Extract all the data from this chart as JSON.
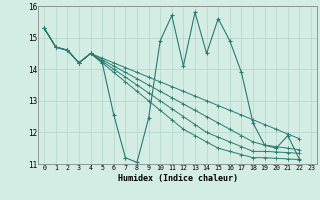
{
  "xlabel": "Humidex (Indice chaleur)",
  "ylabel": "",
  "bg_color": "#d4ede4",
  "line_color": "#2a7a6e",
  "grid_color": "#b8d8ce",
  "xlim": [
    -0.5,
    23.5
  ],
  "ylim": [
    11,
    16
  ],
  "yticks": [
    11,
    12,
    13,
    14,
    15,
    16
  ],
  "xticks": [
    0,
    1,
    2,
    3,
    4,
    5,
    6,
    7,
    8,
    9,
    10,
    11,
    12,
    13,
    14,
    15,
    16,
    17,
    18,
    19,
    20,
    21,
    22,
    23
  ],
  "main_line": [
    15.3,
    14.7,
    14.6,
    14.2,
    14.5,
    14.2,
    12.55,
    11.2,
    11.05,
    12.45,
    14.9,
    15.7,
    14.1,
    15.8,
    14.5,
    15.6,
    14.9,
    13.9,
    12.3,
    11.6,
    11.5,
    11.9,
    11.15
  ],
  "trend_lines": [
    [
      15.3,
      14.7,
      14.6,
      14.2,
      14.5,
      14.35,
      14.2,
      14.05,
      13.9,
      13.75,
      13.6,
      13.45,
      13.3,
      13.15,
      13.0,
      12.85,
      12.7,
      12.55,
      12.4,
      12.25,
      12.1,
      11.95,
      11.8
    ],
    [
      15.3,
      14.7,
      14.6,
      14.2,
      14.5,
      14.3,
      14.1,
      13.9,
      13.7,
      13.5,
      13.3,
      13.1,
      12.9,
      12.7,
      12.5,
      12.3,
      12.1,
      11.9,
      11.7,
      11.6,
      11.55,
      11.5,
      11.45
    ],
    [
      15.3,
      14.7,
      14.6,
      14.2,
      14.5,
      14.25,
      14.0,
      13.75,
      13.5,
      13.25,
      13.0,
      12.75,
      12.5,
      12.25,
      12.0,
      11.85,
      11.7,
      11.55,
      11.4,
      11.4,
      11.38,
      11.36,
      11.34
    ],
    [
      15.3,
      14.7,
      14.6,
      14.2,
      14.5,
      14.2,
      13.9,
      13.6,
      13.3,
      13.0,
      12.7,
      12.4,
      12.1,
      11.9,
      11.7,
      11.5,
      11.4,
      11.3,
      11.2,
      11.2,
      11.18,
      11.16,
      11.14
    ]
  ]
}
